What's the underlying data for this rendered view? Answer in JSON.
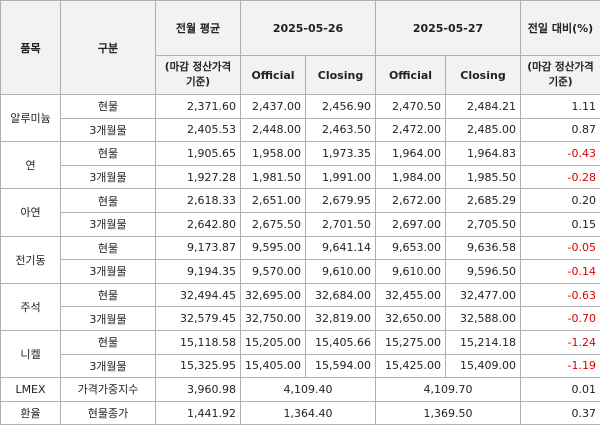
{
  "header": {
    "item": "품목",
    "type": "구분",
    "prev_avg": "전월 평균",
    "prev_avg_note": "(마감 정산가격 기준)",
    "date1": "2025-05-26",
    "date2": "2025-05-27",
    "change": "전일 대비(%)",
    "change_note": "(마감 정산가격 기준)",
    "sub_headers": [
      "Official",
      "Closing",
      "Official",
      "Closing"
    ]
  },
  "metals": [
    {
      "name": "알루미늄",
      "rows": [
        {
          "type": "현물",
          "values": [
            "2,371.60",
            "2,437.00",
            "2,456.90",
            "2,470.50",
            "2,484.21",
            "1.11"
          ]
        },
        {
          "type": "3개월물",
          "values": [
            "2,405.53",
            "2,448.00",
            "2,463.50",
            "2,472.00",
            "2,485.00",
            "0.87"
          ]
        }
      ]
    },
    {
      "name": "연",
      "rows": [
        {
          "type": "현물",
          "values": [
            "1,905.65",
            "1,958.00",
            "1,973.35",
            "1,964.00",
            "1,964.83",
            "-0.43"
          ]
        },
        {
          "type": "3개월물",
          "values": [
            "1,927.28",
            "1,981.50",
            "1,991.00",
            "1,984.00",
            "1,985.50",
            "-0.28"
          ]
        }
      ]
    },
    {
      "name": "아연",
      "rows": [
        {
          "type": "현물",
          "values": [
            "2,618.33",
            "2,651.00",
            "2,679.95",
            "2,672.00",
            "2,685.29",
            "0.20"
          ]
        },
        {
          "type": "3개월물",
          "values": [
            "2,642.80",
            "2,675.50",
            "2,701.50",
            "2,697.00",
            "2,705.50",
            "0.15"
          ]
        }
      ]
    },
    {
      "name": "전기동",
      "rows": [
        {
          "type": "현물",
          "values": [
            "9,173.87",
            "9,595.00",
            "9,641.14",
            "9,653.00",
            "9,636.58",
            "-0.05"
          ]
        },
        {
          "type": "3개월물",
          "values": [
            "9,194.35",
            "9,570.00",
            "9,610.00",
            "9,610.00",
            "9,596.50",
            "-0.14"
          ]
        }
      ]
    },
    {
      "name": "주석",
      "rows": [
        {
          "type": "현물",
          "values": [
            "32,494.45",
            "32,695.00",
            "32,684.00",
            "32,455.00",
            "32,477.00",
            "-0.63"
          ]
        },
        {
          "type": "3개월물",
          "values": [
            "32,579.45",
            "32,750.00",
            "32,819.00",
            "32,650.00",
            "32,588.00",
            "-0.70"
          ]
        }
      ]
    },
    {
      "name": "니켈",
      "rows": [
        {
          "type": "현물",
          "values": [
            "15,118.58",
            "15,205.00",
            "15,405.66",
            "15,275.00",
            "15,214.18",
            "-1.24"
          ]
        },
        {
          "type": "3개월물",
          "values": [
            "15,325.95",
            "15,405.00",
            "15,594.00",
            "15,425.00",
            "15,409.00",
            "-1.19"
          ]
        }
      ]
    }
  ],
  "indices": [
    {
      "name": "LMEX",
      "type": "가격가중지수",
      "prev_avg": "3,960.98",
      "day1": "4,109.40",
      "day2": "4,109.70",
      "change": "0.01"
    },
    {
      "name": "환율",
      "type": "현물종가",
      "prev_avg": "1,441.92",
      "day1": "1,364.40",
      "day2": "1,369.50",
      "change": "0.37"
    }
  ]
}
